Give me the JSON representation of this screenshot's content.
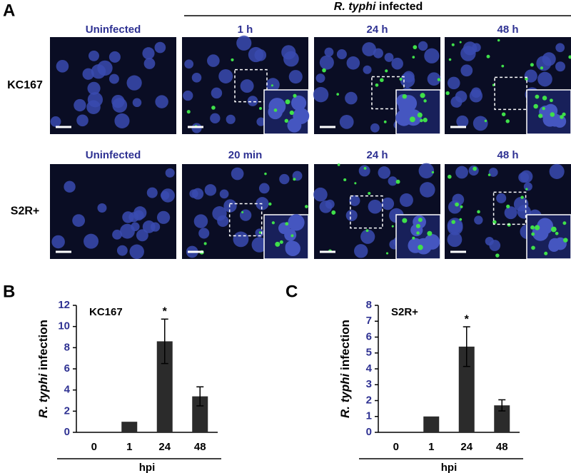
{
  "panel_a": {
    "label": "A",
    "header": [
      "R. typhi",
      "infected"
    ],
    "rows": [
      {
        "name": "KC167",
        "columns": [
          "Uninfected",
          "1 h",
          "24 h",
          "48 h"
        ]
      },
      {
        "name": "S2R+",
        "columns": [
          "Uninfected",
          "20 min",
          "24 h",
          "48 h"
        ]
      }
    ]
  },
  "chart_data": [
    {
      "type": "bar",
      "panel": "B",
      "label": "KC167",
      "ylabel": [
        "R. typhi",
        "infection"
      ],
      "xlabel": "hpi",
      "categories": [
        "0",
        "1",
        "24",
        "48"
      ],
      "values": [
        0,
        1,
        8.6,
        3.4
      ],
      "errors": [
        0,
        0,
        2.1,
        0.9
      ],
      "annotation": "*",
      "color": "#2b2b2b",
      "ylim": [
        0,
        12
      ],
      "yticks": [
        0,
        2,
        4,
        6,
        8,
        10,
        12
      ]
    },
    {
      "type": "bar",
      "panel": "C",
      "label": "S2R+",
      "ylabel": [
        "R. typhi",
        "infection"
      ],
      "xlabel": "hpi",
      "categories": [
        "0",
        "1",
        "24",
        "48"
      ],
      "values": [
        0,
        1,
        5.4,
        1.7
      ],
      "errors": [
        0,
        0,
        1.25,
        0.35
      ],
      "annotation": "*",
      "color": "#2b2b2b",
      "ylim": [
        0,
        8
      ],
      "yticks": [
        0,
        1,
        2,
        3,
        4,
        5,
        6,
        7,
        8
      ]
    }
  ]
}
